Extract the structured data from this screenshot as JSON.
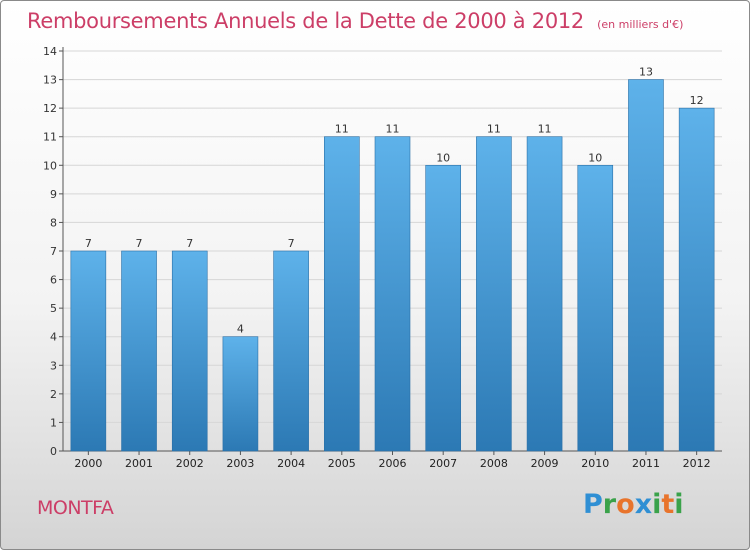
{
  "header": {
    "title": "Remboursements Annuels de la Dette de 2000 à 2012",
    "subtitle": "(en milliers d'€)"
  },
  "footer": {
    "place": "MONTFA",
    "logo": [
      "P",
      "r",
      "o",
      "x",
      "i",
      "t",
      "i"
    ]
  },
  "colors": {
    "title": "#cc3e67",
    "bar_top": "#5eb2ea",
    "bar_bottom": "#2c79b4",
    "logo": [
      "#2f8fd4",
      "#3aa24a",
      "#e8742c",
      "#2f8fd4",
      "#3aa24a",
      "#e8742c",
      "#3aa24a"
    ]
  },
  "chart_data": {
    "type": "bar",
    "title": "Remboursements Annuels de la Dette de 2000 à 2012",
    "subtitle": "(en milliers d'€)",
    "categories": [
      "2000",
      "2001",
      "2002",
      "2003",
      "2004",
      "2005",
      "2006",
      "2007",
      "2008",
      "2009",
      "2010",
      "2011",
      "2012"
    ],
    "values": [
      7,
      7,
      7,
      4,
      7,
      11,
      11,
      10,
      11,
      11,
      10,
      13,
      12
    ],
    "data_labels": [
      "7",
      "7",
      "7",
      "4",
      "7",
      "11",
      "11",
      "10",
      "11",
      "11",
      "10",
      "13",
      "12"
    ],
    "yticks": [
      "0",
      "1",
      "2",
      "3",
      "4",
      "5",
      "6",
      "7",
      "8",
      "9",
      "10",
      "11",
      "12",
      "13",
      "14"
    ],
    "ylim": [
      0,
      14
    ],
    "grid": true,
    "legend": "none"
  }
}
